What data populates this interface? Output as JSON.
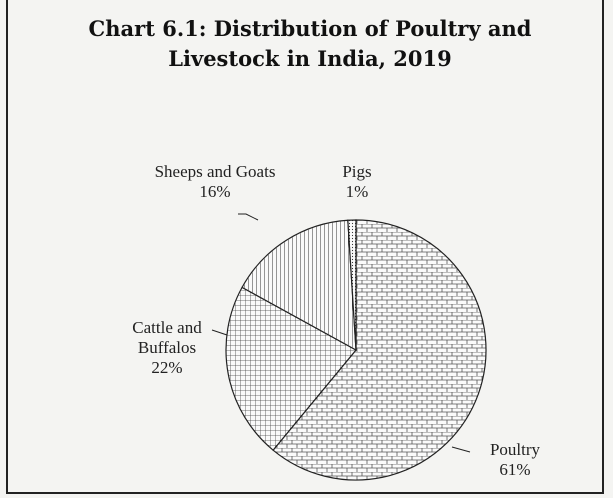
{
  "chart_data": {
    "type": "pie",
    "title": "Chart 6.1: Distribution of Poultry and Livestock in India, 2019",
    "categories": [
      "Poultry",
      "Cattle and Buffalos",
      "Sheeps and Goats",
      "Pigs"
    ],
    "values": [
      61,
      22,
      16,
      1
    ],
    "value_labels": [
      "61%",
      "22%",
      "16%",
      "1%"
    ],
    "patterns": [
      "brick",
      "crosshatch",
      "vertical",
      "dots"
    ]
  }
}
